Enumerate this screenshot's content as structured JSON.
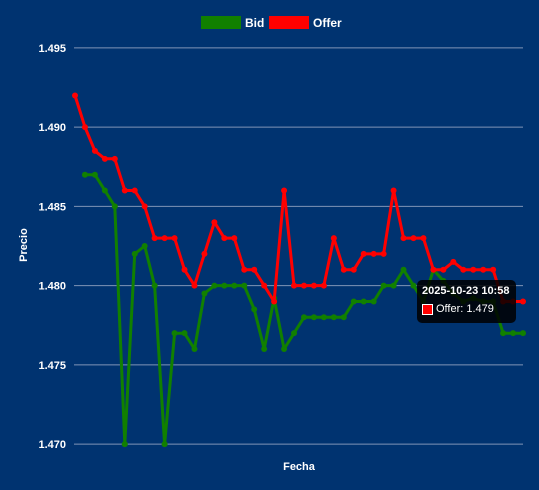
{
  "colors": {
    "background": "#003370",
    "grid": "#7f95b6",
    "bid": "#118000",
    "offer": "#ff0000",
    "text": "#ffffff"
  },
  "chart_data": {
    "type": "line",
    "title": "",
    "xlabel": "Fecha",
    "ylabel": "Precio",
    "ylim": [
      1.4695,
      1.4955
    ],
    "yticks": [
      "1.470",
      "1.475",
      "1.480",
      "1.485",
      "1.490",
      "1.495"
    ],
    "grid": true,
    "legend_position": "top-center",
    "series": [
      {
        "name": "Bid",
        "color": "#118000",
        "values": [
          null,
          1.487,
          1.487,
          1.486,
          1.485,
          1.47,
          1.482,
          1.4825,
          1.48,
          1.47,
          1.477,
          1.477,
          1.476,
          1.4795,
          1.48,
          1.48,
          1.48,
          1.48,
          1.4785,
          1.476,
          1.4792,
          1.476,
          1.477,
          1.478,
          1.478,
          1.478,
          1.478,
          1.478,
          1.479,
          1.479,
          1.479,
          1.48,
          1.48,
          1.481,
          1.48,
          1.479,
          1.481,
          1.4803,
          1.4795,
          1.479,
          1.4792,
          1.479,
          1.479,
          1.477,
          1.477,
          1.477
        ]
      },
      {
        "name": "Offer",
        "color": "#ff0000",
        "values": [
          1.492,
          1.49,
          1.4885,
          1.488,
          1.488,
          1.486,
          1.486,
          1.485,
          1.483,
          1.483,
          1.483,
          1.481,
          1.48,
          1.482,
          1.484,
          1.483,
          1.483,
          1.481,
          1.481,
          1.48,
          1.479,
          1.486,
          1.48,
          1.48,
          1.48,
          1.48,
          1.483,
          1.481,
          1.481,
          1.482,
          1.482,
          1.482,
          1.486,
          1.483,
          1.483,
          1.483,
          1.481,
          1.481,
          1.4815,
          1.481,
          1.481,
          1.481,
          1.481,
          1.479,
          1.479,
          1.479
        ]
      }
    ]
  },
  "tooltip": {
    "title": "2025-10-23 10:58",
    "label": "Offer: 1.479"
  }
}
